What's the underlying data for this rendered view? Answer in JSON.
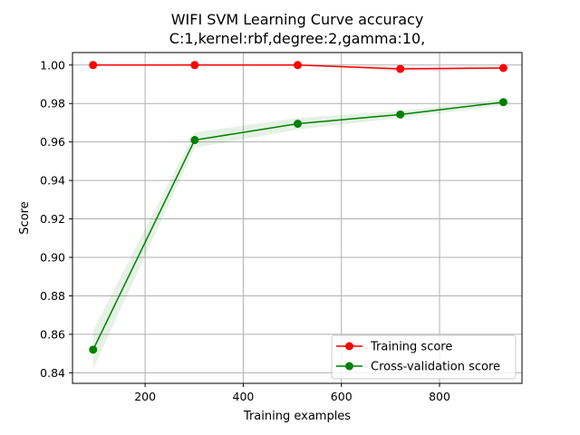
{
  "chart_data": {
    "type": "line",
    "title": "WIFI SVM Learning Curve accuracy",
    "subtitle": "C:1,kernel:rbf,degree:2,gamma:10,",
    "xlabel": "Training examples",
    "ylabel": "Score",
    "xlim": [
      52,
      968
    ],
    "ylim": [
      0.8345,
      1.0065
    ],
    "xticks": [
      200,
      400,
      600,
      800
    ],
    "xtick_labels": [
      "200",
      "400",
      "600",
      "800"
    ],
    "yticks": [
      0.84,
      0.86,
      0.88,
      0.9,
      0.92,
      0.94,
      0.96,
      0.98,
      1.0
    ],
    "ytick_labels": [
      "0.84",
      "0.86",
      "0.88",
      "0.90",
      "0.92",
      "0.94",
      "0.96",
      "0.98",
      "1.00"
    ],
    "grid": true,
    "legend_position": "lower-right",
    "x": [
      94,
      301,
      511,
      720,
      930
    ],
    "series": [
      {
        "name": "Training score",
        "color": "#ff0000",
        "values": [
          1.0,
          1.0,
          1.0,
          0.998,
          0.9985
        ],
        "band_lower": [
          1.0,
          1.0,
          1.0,
          0.9968,
          0.9978
        ],
        "band_upper": [
          1.0,
          1.0,
          1.0,
          0.9992,
          0.9992
        ]
      },
      {
        "name": "Cross-validation score",
        "color": "#008000",
        "values": [
          0.852,
          0.961,
          0.9695,
          0.9743,
          0.9807
        ],
        "band_lower": [
          0.842,
          0.957,
          0.9665,
          0.9725,
          0.979
        ],
        "band_upper": [
          0.862,
          0.965,
          0.9725,
          0.9761,
          0.9824
        ]
      }
    ]
  }
}
